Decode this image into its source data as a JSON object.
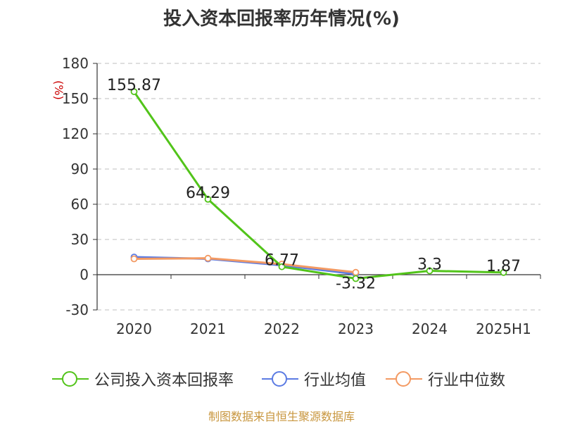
{
  "title": "投入资本回报率历年情况(%)",
  "source": "制图数据来自恒生聚源数据库",
  "colors": {
    "company": "#52c41a",
    "industry_avg": "#5b7be3",
    "industry_median": "#f39a63",
    "axis": "#333333",
    "grid": "#cccccc",
    "unit": "#cc0000"
  },
  "legend": [
    {
      "label": "公司投入资本回报率",
      "color": "#52c41a"
    },
    {
      "label": "行业均值",
      "color": "#5b7be3"
    },
    {
      "label": "行业中位数",
      "color": "#f39a63"
    }
  ],
  "chart_data": {
    "type": "line",
    "title": "投入资本回报率历年情况(%)",
    "ylabel": "(%)",
    "xlabel": "",
    "categories": [
      "2020",
      "2021",
      "2022",
      "2023",
      "2024",
      "2025H1"
    ],
    "ylim": [
      -30,
      180
    ],
    "yticks": [
      -30,
      0,
      30,
      60,
      90,
      120,
      150,
      180
    ],
    "grid": true,
    "legend_position": "bottom",
    "series": [
      {
        "name": "公司投入资本回报率",
        "color": "#52c41a",
        "values": [
          155.87,
          64.29,
          6.77,
          -3.32,
          3.3,
          1.87
        ],
        "labels": [
          "155.87",
          "64.29",
          "6.77",
          "-3.32",
          "3.3",
          "1.87"
        ]
      },
      {
        "name": "行业均值",
        "color": "#5b7be3",
        "values": [
          15.0,
          13.5,
          8.0,
          0.5,
          null,
          null
        ]
      },
      {
        "name": "行业中位数",
        "color": "#f39a63",
        "values": [
          13.5,
          14.0,
          9.0,
          2.0,
          null,
          null
        ]
      }
    ]
  }
}
